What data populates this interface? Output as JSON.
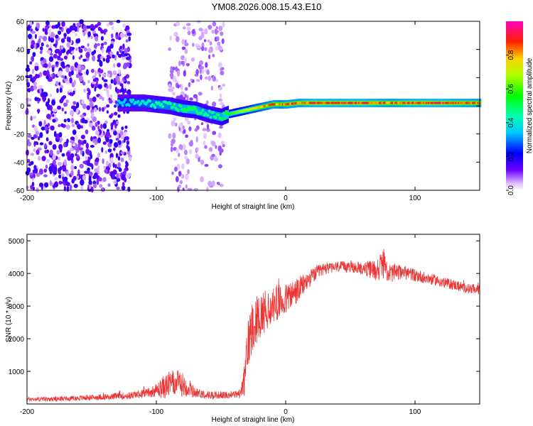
{
  "title": "YM08.2026.008.15.43.E10",
  "chart_data": [
    {
      "type": "heatmap",
      "xlabel": "Height of straight line (km)",
      "ylabel": "Frequency (Hz)",
      "xlim": [
        -200,
        150
      ],
      "ylim": [
        -60,
        60
      ],
      "x_ticks": [
        "-200",
        "-100",
        "0",
        "100"
      ],
      "x_tick_values": [
        -200,
        -100,
        0,
        100
      ],
      "y_ticks": [
        "60",
        "40",
        "20",
        "0",
        "-20",
        "-40",
        "-60"
      ],
      "y_tick_values": [
        60,
        40,
        20,
        0,
        -20,
        -40,
        -60
      ],
      "colorbar": {
        "label": "Normalized spectral amplitude",
        "ticks": [
          "0.0",
          "0.2",
          "0.4",
          "0.6",
          "0.8"
        ],
        "tick_values": [
          0.0,
          0.2,
          0.4,
          0.6,
          0.8
        ],
        "range": [
          0,
          1
        ]
      },
      "ridge": {
        "x": [
          -130,
          -110,
          -100,
          -90,
          -80,
          -70,
          -60,
          -50,
          -45,
          -40,
          -35,
          -30,
          -25,
          -20,
          -15,
          -10,
          -5,
          0,
          10,
          20,
          40,
          60,
          80,
          100,
          120,
          150
        ],
        "freq": [
          2,
          2,
          1,
          0,
          -2,
          -3,
          -6,
          -8,
          -6,
          -5,
          -4,
          -3,
          -2,
          -1,
          0,
          1,
          1,
          1,
          2,
          2,
          2,
          2,
          2,
          2,
          2,
          2
        ],
        "amplitude": [
          0.35,
          0.4,
          0.45,
          0.45,
          0.5,
          0.5,
          0.45,
          0.5,
          0.55,
          0.6,
          0.65,
          0.7,
          0.75,
          0.8,
          0.85,
          0.9,
          0.85,
          0.9,
          0.9,
          0.95,
          0.95,
          0.95,
          0.9,
          0.95,
          0.95,
          0.9
        ]
      },
      "noise_regions": [
        {
          "x_range": [
            -200,
            -120
          ],
          "density": "high"
        },
        {
          "x_range": [
            -90,
            -48
          ],
          "density": "low"
        }
      ]
    },
    {
      "type": "line",
      "xlabel": "Height of straight line (km)",
      "ylabel": "SNR (10 * v/v)",
      "xlim": [
        -200,
        150
      ],
      "ylim": [
        0,
        5200
      ],
      "x_ticks": [
        "-200",
        "-100",
        "0",
        "100"
      ],
      "x_tick_values": [
        -200,
        -100,
        0,
        100
      ],
      "y_ticks": [
        "1000",
        "2000",
        "3000",
        "4000",
        "5000"
      ],
      "y_tick_values": [
        1000,
        2000,
        3000,
        4000,
        5000
      ],
      "color": "#ee3333",
      "series": {
        "x": [
          -200,
          -180,
          -160,
          -140,
          -120,
          -110,
          -100,
          -95,
          -90,
          -85,
          -80,
          -75,
          -70,
          -60,
          -50,
          -40,
          -35,
          -32,
          -30,
          -28,
          -25,
          -20,
          -15,
          -10,
          -5,
          0,
          5,
          10,
          15,
          20,
          25,
          30,
          40,
          50,
          60,
          70,
          75,
          80,
          90,
          100,
          110,
          120,
          130,
          140,
          150
        ],
        "y": [
          150,
          150,
          180,
          220,
          260,
          320,
          420,
          500,
          600,
          650,
          620,
          500,
          350,
          280,
          270,
          290,
          320,
          700,
          1500,
          2100,
          2500,
          2700,
          2900,
          3000,
          3100,
          3200,
          3350,
          3500,
          3700,
          3900,
          4050,
          4150,
          4200,
          4200,
          4150,
          4100,
          4300,
          4000,
          4050,
          3950,
          3850,
          3750,
          3650,
          3550,
          3500
        ],
        "noise_amplitude": [
          60,
          70,
          80,
          90,
          110,
          130,
          200,
          350,
          400,
          400,
          380,
          300,
          160,
          120,
          110,
          110,
          150,
          500,
          800,
          900,
          800,
          700,
          650,
          600,
          550,
          500,
          450,
          400,
          300,
          250,
          200,
          180,
          170,
          170,
          200,
          350,
          450,
          300,
          220,
          200,
          180,
          160,
          160,
          150,
          150
        ]
      }
    }
  ]
}
